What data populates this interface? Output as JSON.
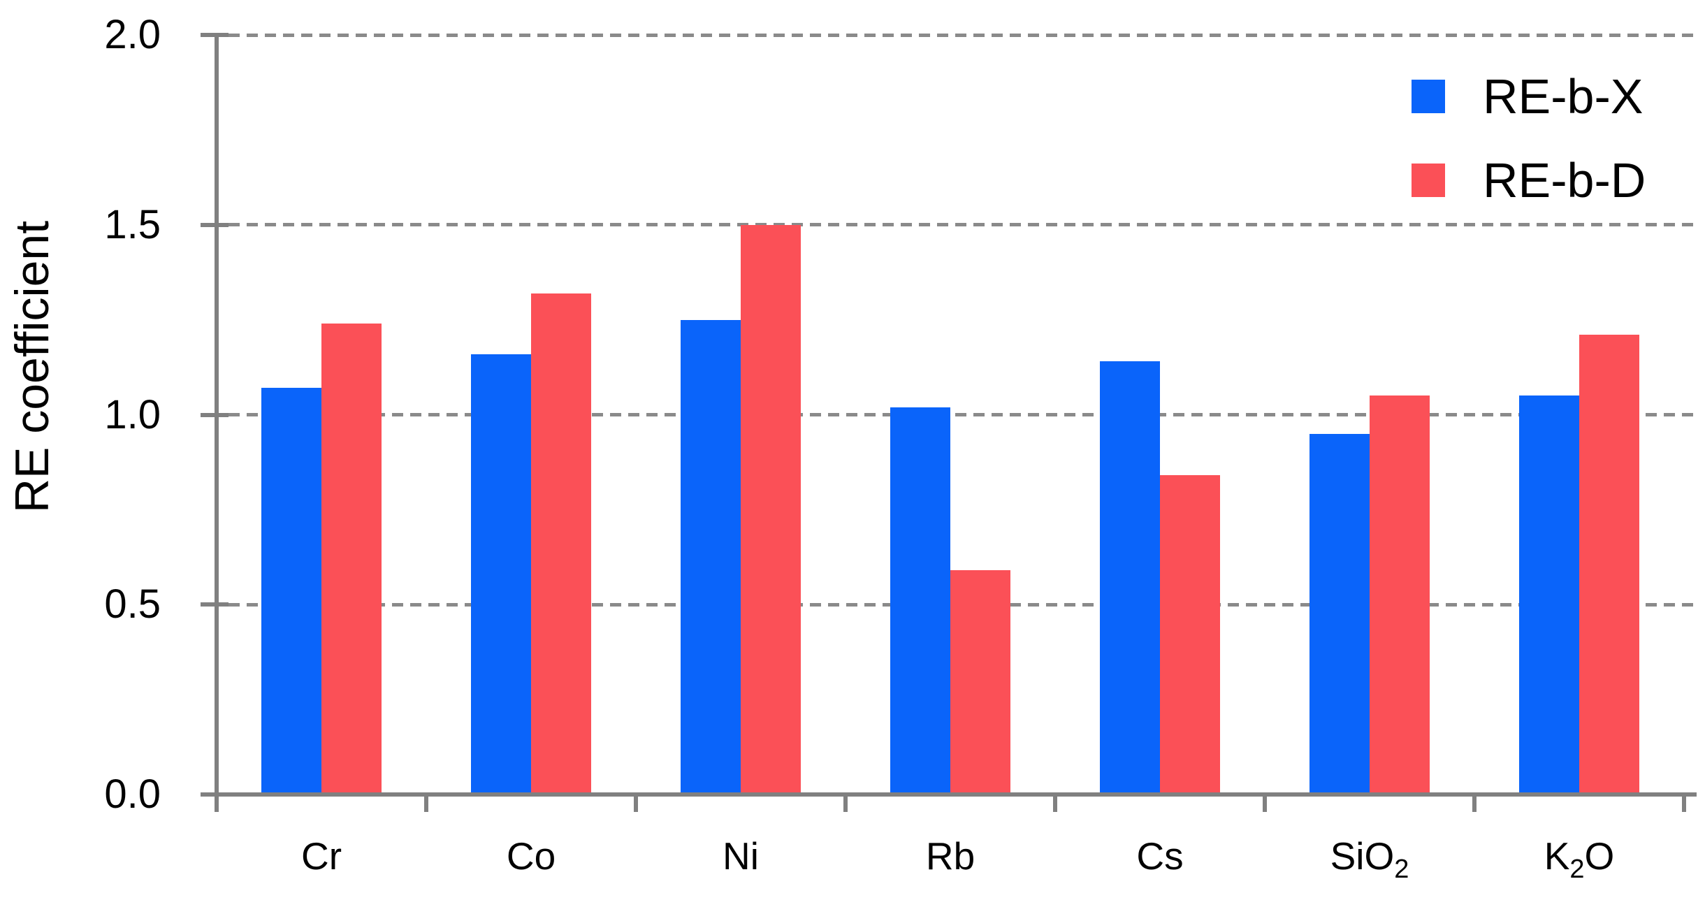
{
  "chart_data": {
    "type": "bar",
    "title": "",
    "xlabel": "",
    "ylabel": "RE coefficient",
    "ylim": [
      0,
      2.0
    ],
    "yticks": [
      0.0,
      0.5,
      1.0,
      1.5,
      2.0
    ],
    "ytick_labels": [
      "0.0",
      "0.5",
      "1.0",
      "1.5",
      "2.0"
    ],
    "grid": "dashed horizontal gridlines at each y tick",
    "legend_position": "top-right",
    "categories": [
      {
        "label": "Cr"
      },
      {
        "label": "Co"
      },
      {
        "label": "Ni"
      },
      {
        "label": "Rb"
      },
      {
        "label": "Cs"
      },
      {
        "label": "SiO",
        "subscript": "2"
      },
      {
        "label": "K",
        "subscript": "2",
        "suffix": "O"
      }
    ],
    "series": [
      {
        "name": "RE-b-X",
        "color": "#0a64fa",
        "values": [
          1.07,
          1.16,
          1.25,
          1.02,
          1.14,
          0.95,
          1.05
        ]
      },
      {
        "name": "RE-b-D",
        "color": "#fb5057",
        "values": [
          1.24,
          1.32,
          1.5,
          0.59,
          0.84,
          1.05,
          1.21
        ]
      }
    ],
    "colors": {
      "background": "#ffffff",
      "axis": "#808080",
      "grid": "#8a8a8a",
      "text": "#000000"
    }
  }
}
